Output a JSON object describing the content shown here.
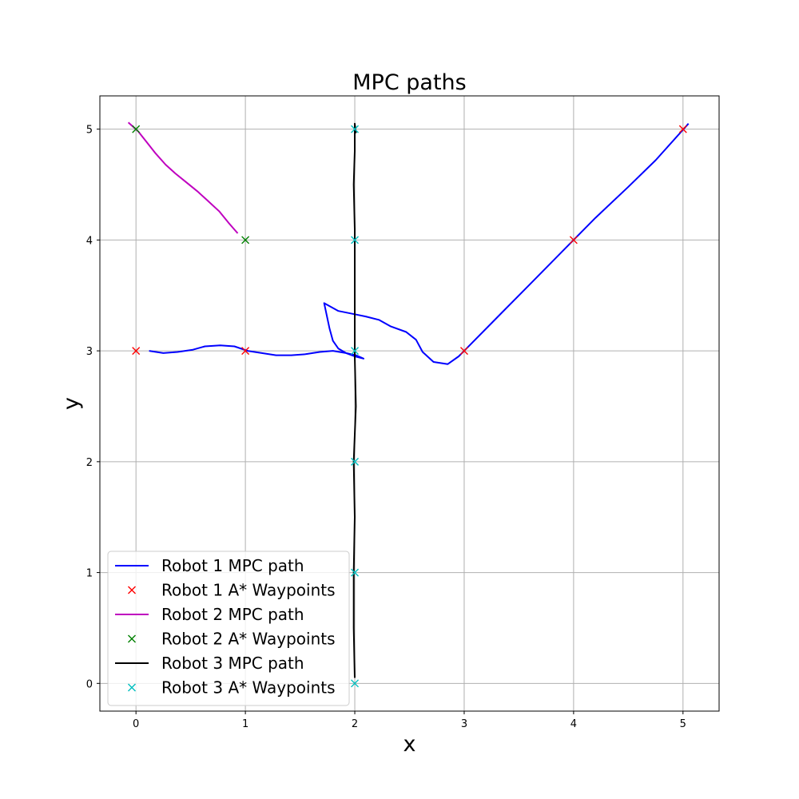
{
  "chart_data": {
    "type": "line",
    "title": "MPC paths",
    "xlabel": "x",
    "ylabel": "y",
    "xlim": [
      -0.33,
      5.33
    ],
    "ylim": [
      -0.25,
      5.3
    ],
    "xticks": [
      0,
      1,
      2,
      3,
      4,
      5
    ],
    "yticks": [
      0,
      1,
      2,
      3,
      4,
      5
    ],
    "grid": true,
    "legend_position": "lower-left",
    "series": [
      {
        "name": "Robot 1 MPC path",
        "kind": "line",
        "color": "#0000ff",
        "x": [
          0.12,
          0.25,
          0.38,
          0.52,
          0.63,
          0.77,
          0.9,
          1.02,
          1.15,
          1.28,
          1.42,
          1.55,
          1.68,
          1.8,
          1.92,
          2.01,
          2.08,
          2.0,
          1.92,
          1.85,
          1.8,
          1.77,
          1.72,
          1.85,
          2.0,
          2.1,
          2.22,
          2.33,
          2.47,
          2.56,
          2.62,
          2.72,
          2.85,
          2.95,
          3.0,
          3.3,
          3.6,
          3.9,
          4.2,
          4.5,
          4.75,
          5.05
        ],
        "y": [
          3.0,
          2.98,
          2.99,
          3.01,
          3.04,
          3.05,
          3.04,
          3.0,
          2.98,
          2.96,
          2.96,
          2.97,
          2.99,
          3.0,
          2.98,
          2.96,
          2.93,
          2.95,
          2.98,
          3.02,
          3.09,
          3.2,
          3.43,
          3.36,
          3.33,
          3.31,
          3.28,
          3.22,
          3.17,
          3.1,
          2.99,
          2.9,
          2.88,
          2.95,
          3.0,
          3.3,
          3.6,
          3.9,
          4.2,
          4.48,
          4.72,
          5.05
        ]
      },
      {
        "name": "Robot 1 A* Waypoints",
        "kind": "marker",
        "color": "#ff0000",
        "x": [
          0,
          1,
          3,
          4,
          5
        ],
        "y": [
          3,
          3,
          3,
          4,
          5
        ]
      },
      {
        "name": "Robot 2 MPC path",
        "kind": "line",
        "color": "#bf00bf",
        "x": [
          -0.07,
          0.02,
          0.1,
          0.18,
          0.27,
          0.36,
          0.46,
          0.56,
          0.66,
          0.76,
          0.85,
          0.93
        ],
        "y": [
          5.06,
          4.98,
          4.88,
          4.78,
          4.68,
          4.6,
          4.52,
          4.44,
          4.35,
          4.26,
          4.15,
          4.06
        ]
      },
      {
        "name": "Robot 2 A* Waypoints",
        "kind": "marker",
        "color": "#008000",
        "x": [
          0,
          1
        ],
        "y": [
          5,
          4
        ]
      },
      {
        "name": "Robot 3 MPC path",
        "kind": "line",
        "color": "#000000",
        "x": [
          2.0,
          1.99,
          1.99,
          2.0,
          1.99,
          2.01,
          2.0,
          2.0,
          2.0,
          2.0,
          1.99,
          2.0,
          2.0,
          2.01,
          2.0,
          2.0,
          2.0
        ],
        "y": [
          0.05,
          0.5,
          1.0,
          1.5,
          2.0,
          2.5,
          2.95,
          3.4,
          3.8,
          4.1,
          4.5,
          4.8,
          4.98,
          4.97,
          5.05,
          5.01,
          4.95
        ]
      },
      {
        "name": "Robot 3 A* Waypoints",
        "kind": "marker",
        "color": "#00bfbf",
        "x": [
          2,
          2,
          2,
          2,
          2,
          2
        ],
        "y": [
          0,
          1,
          2,
          3,
          4,
          5
        ]
      }
    ]
  }
}
